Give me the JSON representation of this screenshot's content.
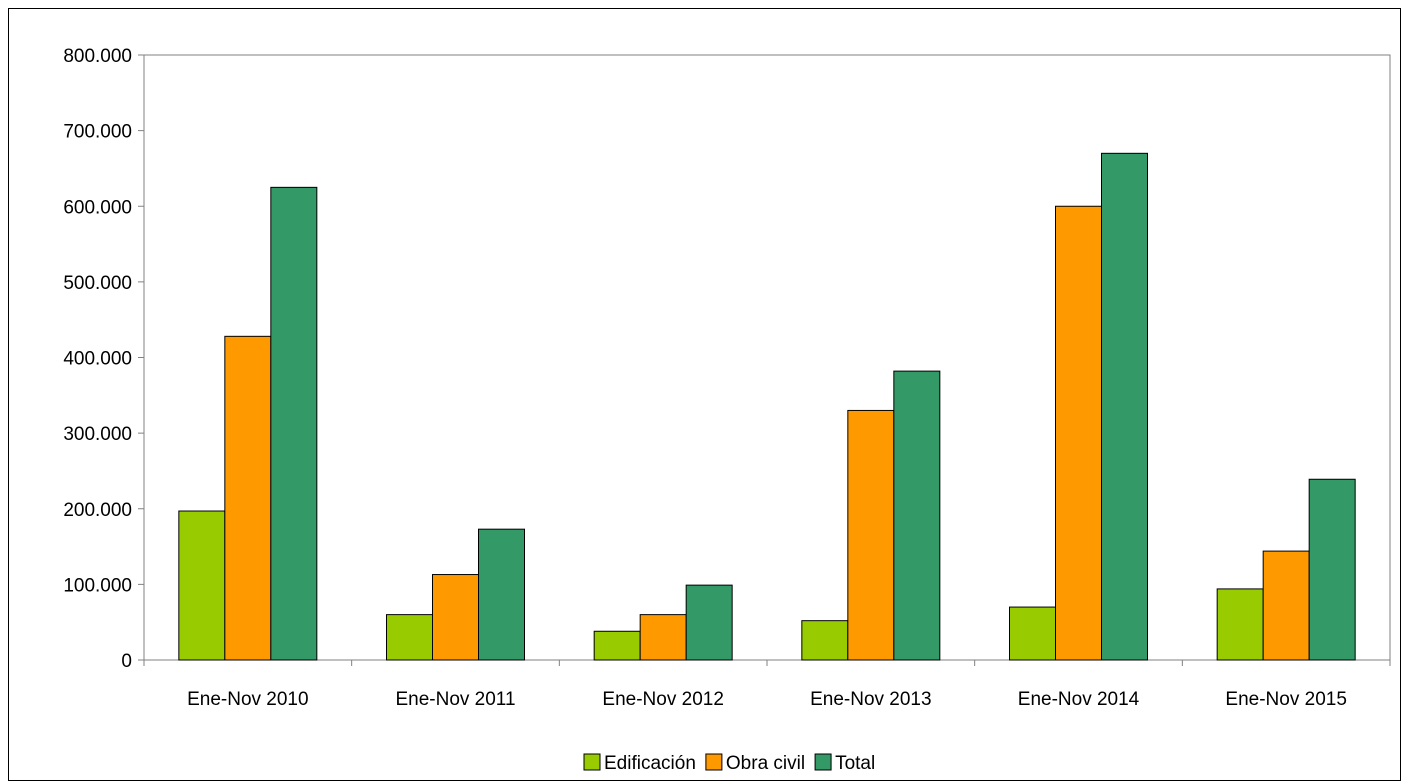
{
  "chart_data": {
    "type": "bar",
    "categories": [
      "Ene-Nov 2010",
      "Ene-Nov 2011",
      "Ene-Nov 2012",
      "Ene-Nov 2013",
      "Ene-Nov 2014",
      "Ene-Nov 2015"
    ],
    "series": [
      {
        "name": "Edificación",
        "color": "#99cc00",
        "values": [
          197000,
          60000,
          38000,
          52000,
          70000,
          94000
        ]
      },
      {
        "name": "Obra civil",
        "color": "#ff9900",
        "values": [
          428000,
          113000,
          60000,
          330000,
          600000,
          144000
        ]
      },
      {
        "name": "Total",
        "color": "#339966",
        "values": [
          625000,
          173000,
          99000,
          382000,
          670000,
          239000
        ]
      }
    ],
    "ylim": [
      0,
      800000
    ],
    "yticks": [
      0,
      100000,
      200000,
      300000,
      400000,
      500000,
      600000,
      700000,
      800000
    ],
    "ytick_labels": [
      "0",
      "100.000",
      "200.000",
      "300.000",
      "400.000",
      "500.000",
      "600.000",
      "700.000",
      "800.000"
    ],
    "title": "",
    "xlabel": "",
    "ylabel": "",
    "grid": false,
    "legend_position": "bottom"
  }
}
